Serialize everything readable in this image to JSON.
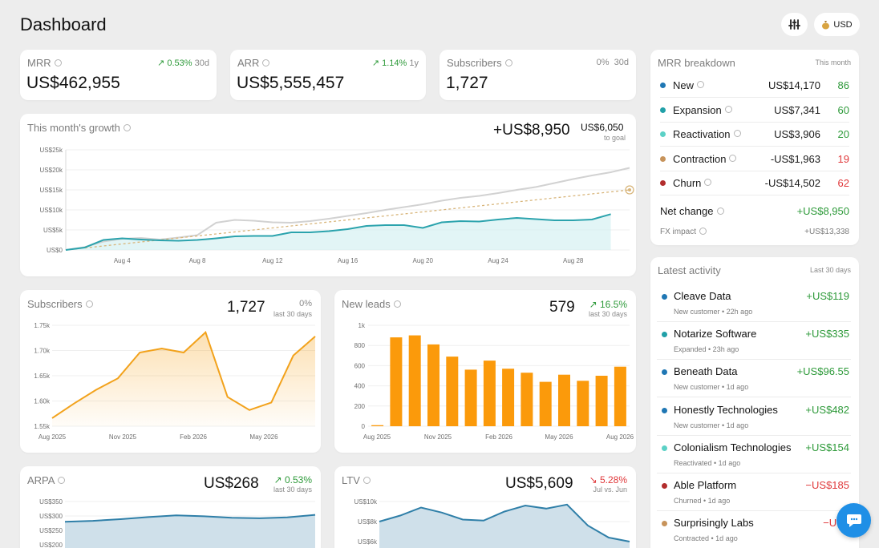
{
  "header": {
    "title": "Dashboard",
    "currency_label": "USD",
    "icons": [
      "sliders-icon",
      "money-bag-icon"
    ]
  },
  "kpis": {
    "mrr": {
      "label": "MRR",
      "value": "US$462,955",
      "change": "0.53%",
      "period": "30d"
    },
    "arr": {
      "label": "ARR",
      "value": "US$5,555,457",
      "change": "1.14%",
      "period": "1y"
    },
    "subs": {
      "label": "Subscribers",
      "value": "1,727",
      "change": "0%",
      "period": "30d"
    }
  },
  "growth": {
    "title": "This month's growth",
    "value": "+US$8,950",
    "goal_value": "US$6,050",
    "goal_label": "to goal",
    "chart_data": {
      "type": "area",
      "yticks": [
        "US$25k",
        "US$20k",
        "US$15k",
        "US$10k",
        "US$5k",
        "US$0"
      ],
      "ylim": [
        0,
        25000
      ],
      "xticks": [
        "Aug 4",
        "Aug 8",
        "Aug 12",
        "Aug 16",
        "Aug 20",
        "Aug 24",
        "Aug 28"
      ],
      "x_days": [
        1,
        2,
        3,
        4,
        5,
        6,
        7,
        8,
        9,
        10,
        11,
        12,
        13,
        14,
        15,
        16,
        17,
        18,
        19,
        20,
        21,
        22,
        23,
        24,
        25,
        26,
        27,
        28,
        29,
        30,
        31
      ],
      "series": [
        {
          "values": [
            0,
            600,
            2500,
            2900,
            2600,
            2400,
            2300,
            2500,
            2900,
            3400,
            3500,
            3500,
            4400,
            4400,
            4700,
            5200,
            6000,
            6200,
            6200,
            5500,
            6900,
            7200,
            7100,
            7600,
            8000,
            7700,
            7400,
            7400,
            7600,
            8950,
            8950
          ]
        },
        {
          "values": [
            0,
            700,
            2100,
            2800,
            3000,
            2600,
            3100,
            3700,
            6800,
            7500,
            7300,
            6900,
            6800,
            7200,
            7800,
            8500,
            9200,
            10000,
            10700,
            11400,
            12300,
            13000,
            13500,
            14200,
            15000,
            15700,
            16700,
            17700,
            18600,
            19400,
            20500
          ]
        },
        {
          "values": [
            0,
            500,
            1000,
            1500,
            2000,
            2500,
            3000,
            3500,
            4000,
            4500,
            5000,
            5500,
            6000,
            6500,
            7000,
            7500,
            8000,
            8500,
            9000,
            9500,
            10000,
            10500,
            11000,
            11500,
            12000,
            12500,
            13000,
            13500,
            14000,
            14500,
            15000
          ]
        }
      ]
    }
  },
  "breakdown": {
    "title": "MRR breakdown",
    "period": "This month",
    "rows": [
      {
        "label": "New",
        "amount": "US$14,170",
        "count": "86",
        "color": "#1f77b4"
      },
      {
        "label": "Expansion",
        "amount": "US$7,341",
        "count": "60",
        "color": "#21a0a8"
      },
      {
        "label": "Reactivation",
        "amount": "US$3,906",
        "count": "20",
        "color": "#5cd1c6"
      },
      {
        "label": "Contraction",
        "amount": "-US$1,963",
        "count": "19",
        "color": "#c7935b"
      },
      {
        "label": "Churn",
        "amount": "-US$14,502",
        "count": "62",
        "color": "#b22d2d"
      }
    ],
    "net_label": "Net change",
    "net_value": "+US$8,950",
    "fx_label": "FX impact",
    "fx_value": "+US$13,338"
  },
  "subscribers": {
    "title": "Subscribers",
    "value": "1,727",
    "change": "0%",
    "period": "last 30 days",
    "chart_data": {
      "type": "area",
      "yticks": [
        "1.75k",
        "1.70k",
        "1.65k",
        "1.60k",
        "1.55k"
      ],
      "ylim": [
        1550,
        1775
      ],
      "xticks": [
        "Aug 2025",
        "Nov 2025",
        "Feb 2026",
        "May 2026"
      ],
      "values": [
        1566,
        1595,
        1622,
        1645,
        1696,
        1704,
        1696,
        1736,
        1608,
        1582,
        1597,
        1690,
        1728
      ]
    }
  },
  "leads": {
    "title": "New leads",
    "value": "579",
    "change": "16.5%",
    "period": "last 30 days",
    "chart_data": {
      "type": "bar",
      "yticks": [
        "1k",
        "800",
        "600",
        "400",
        "200",
        "0"
      ],
      "ylim": [
        0,
        1000
      ],
      "xticks": [
        "Aug 2025",
        "Nov 2025",
        "Feb 2026",
        "May 2026",
        "Aug 2026"
      ],
      "values": [
        10,
        880,
        900,
        810,
        690,
        560,
        650,
        570,
        530,
        440,
        510,
        450,
        500,
        590
      ]
    }
  },
  "arpa": {
    "title": "ARPA",
    "value": "US$268",
    "change": "0.53%",
    "period": "last 30 days",
    "chart_data": {
      "type": "area",
      "yticks": [
        "US$350",
        "US$300",
        "US$250",
        "US$200"
      ],
      "ylim": [
        200,
        350
      ],
      "values": [
        280,
        283,
        289,
        296,
        302,
        299,
        294,
        292,
        295,
        304
      ]
    }
  },
  "ltv": {
    "title": "LTV",
    "value": "US$5,609",
    "change": "5.28%",
    "period": "Jul vs. Jun",
    "chart_data": {
      "type": "area",
      "yticks": [
        "US$10k",
        "US$8k",
        "US$6k"
      ],
      "ylim": [
        6000,
        10500
      ],
      "values": [
        8000,
        8600,
        9400,
        8900,
        8200,
        8100,
        9000,
        9600,
        9300,
        9700,
        7600,
        6400,
        6000
      ]
    }
  },
  "activity": {
    "title": "Latest activity",
    "period": "Last 30 days",
    "rows": [
      {
        "name": "Cleave Data",
        "sub": "New customer • 22h ago",
        "value": "+US$119",
        "color": "#1f77b4",
        "tone": "green"
      },
      {
        "name": "Notarize Software",
        "sub": "Expanded • 23h ago",
        "value": "+US$335",
        "color": "#21a0a8",
        "tone": "green"
      },
      {
        "name": "Beneath Data",
        "sub": "New customer • 1d ago",
        "value": "+US$96.55",
        "color": "#1f77b4",
        "tone": "green"
      },
      {
        "name": "Honestly Technologies",
        "sub": "New customer • 1d ago",
        "value": "+US$482",
        "color": "#1f77b4",
        "tone": "green"
      },
      {
        "name": "Colonialism Technologies",
        "sub": "Reactivated • 1d ago",
        "value": "+US$154",
        "color": "#5cd1c6",
        "tone": "green"
      },
      {
        "name": "Able Platform",
        "sub": "Churned • 1d ago",
        "value": "−US$185",
        "color": "#b22d2d",
        "tone": "red"
      },
      {
        "name": "Surprisingly Labs",
        "sub": "Contracted • 1d ago",
        "value": "−US$",
        "color": "#c7935b",
        "tone": "red"
      }
    ]
  },
  "chat_icon": "chat-icon"
}
